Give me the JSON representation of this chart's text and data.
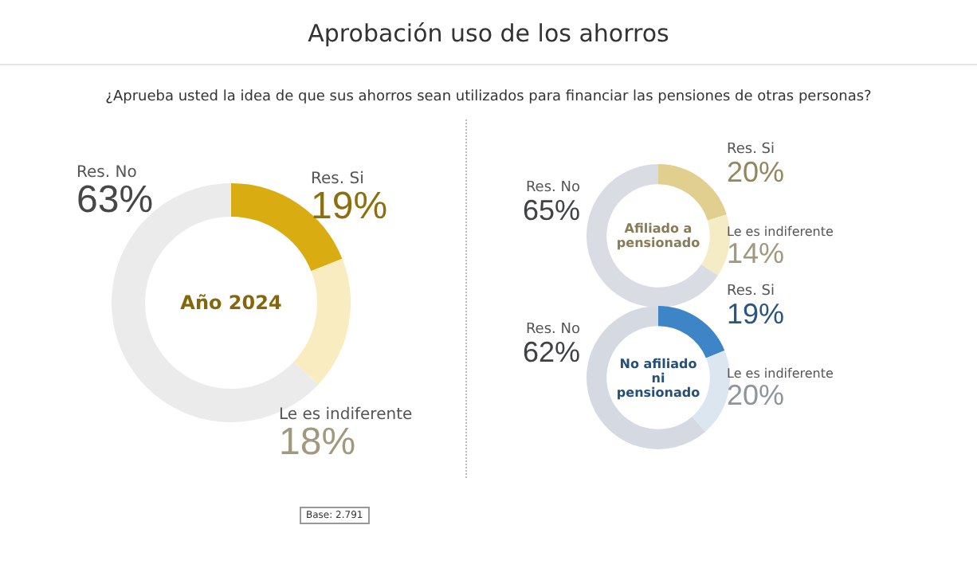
{
  "chart_data": [
    {
      "type": "other",
      "title": "Aprobación uso de los ahorros",
      "subtitle": "¿Aprueba usted la idea de que sus ahorros sean utilizados para financiar  las pensiones de otras personas?",
      "annotations": [
        "Base: 2.791"
      ]
    },
    {
      "type": "donut",
      "title": "Año 2024",
      "categories": [
        "Res. Si",
        "Le es indiferente",
        "Res. No"
      ],
      "values": [
        19,
        18,
        63
      ],
      "value_labels": [
        "19%",
        "18%",
        "63%"
      ],
      "colors": [
        "#d9ad12",
        "#f8ecc0",
        "#ebebeb"
      ]
    },
    {
      "type": "donut",
      "title": "Afiliado a pensionado",
      "categories": [
        "Res. Si",
        "Le es indiferente",
        "Res. No"
      ],
      "values": [
        20,
        14,
        65
      ],
      "value_labels": [
        "20%",
        "14%",
        "65%"
      ],
      "colors": [
        "#e0cf8f",
        "#f5ecc5",
        "#d9dce3"
      ]
    },
    {
      "type": "donut",
      "title": "No afiliado ni pensionado",
      "categories": [
        "Res. Si",
        "Le es indiferente",
        "Res. No"
      ],
      "values": [
        19,
        20,
        62
      ],
      "value_labels": [
        "19%",
        "20%",
        "62%"
      ],
      "colors": [
        "#3d85c6",
        "#dbe6f0",
        "#d5dae2"
      ]
    }
  ]
}
